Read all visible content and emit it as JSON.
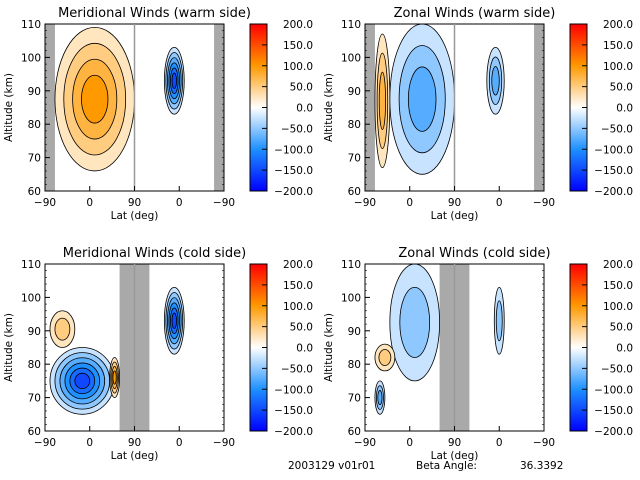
{
  "footer": {
    "date_version": "2003129 v01r01",
    "beta_label": "Beta Angle:",
    "beta_value": "36.3392"
  },
  "chart_data": [
    {
      "type": "heatmap",
      "title": "Meridional Winds (warm side)",
      "xlabel": "Lat (deg)",
      "ylabel": "Altitude (km)",
      "xticks": [
        "-90",
        "0",
        "90",
        "0",
        "-90"
      ],
      "yticks": [
        "60",
        "70",
        "80",
        "90",
        "100",
        "110"
      ],
      "ylim": [
        60,
        110
      ],
      "grid": false,
      "colorbar": {
        "range": [
          -200,
          200
        ],
        "ticks": [
          "200.0",
          "150.0",
          "100.0",
          "50.0",
          "0.0",
          "-50.0",
          "-100.0",
          "-150.0",
          "-200.0"
        ],
        "colormap": "blue-white-red"
      },
      "masked_lat_bands": [
        [
          -90,
          -70
        ],
        [
          -90,
          -70
        ]
      ],
      "features": [
        {
          "lat_range": [
            -70,
            90
          ],
          "alt_range": [
            66,
            109
          ],
          "value": 100,
          "note": "broad positive (orange) region, peaks ~150 near 90 at 100-105 km"
        },
        {
          "lat_range": [
            -10,
            30
          ],
          "alt_range": [
            83,
            103
          ],
          "value": -150,
          "note": "negative (blue) cell on right panel, centered ~93 km",
          "panel_side": "right"
        }
      ]
    },
    {
      "type": "heatmap",
      "title": "Zonal Winds (warm side)",
      "xlabel": "Lat (deg)",
      "ylabel": "Altitude (km)",
      "xticks": [
        "-90",
        "0",
        "90",
        "0",
        "-90"
      ],
      "yticks": [
        "60",
        "70",
        "80",
        "90",
        "100",
        "110"
      ],
      "ylim": [
        60,
        110
      ],
      "grid": false,
      "colorbar": {
        "range": [
          -200,
          200
        ],
        "ticks": [
          "200.0",
          "150.0",
          "100.0",
          "50.0",
          "0.0",
          "-50.0",
          "-100.0",
          "-150.0",
          "-200.0"
        ],
        "colormap": "blue-white-red"
      },
      "masked_lat_bands": [
        [
          -90,
          -70
        ],
        [
          -90,
          -70
        ]
      ],
      "features": [
        {
          "lat_range": [
            -70,
            -40
          ],
          "alt_range": [
            67,
            107
          ],
          "value": 75,
          "note": "positive band, peak near -50 at 75 km"
        },
        {
          "lat_range": [
            -40,
            90
          ],
          "alt_range": [
            65,
            110
          ],
          "value": -75,
          "note": "negative region, peak ~-125 near 90 at 77 km"
        },
        {
          "lat_range": [
            -10,
            25
          ],
          "alt_range": [
            83,
            103
          ],
          "value": -75,
          "note": "negative cell on right panel",
          "panel_side": "right"
        }
      ]
    },
    {
      "type": "heatmap",
      "title": "Meridional Winds (cold side)",
      "xlabel": "Lat (deg)",
      "ylabel": "Altitude (km)",
      "xticks": [
        "-90",
        "0",
        "90",
        "0",
        "-90"
      ],
      "yticks": [
        "60",
        "70",
        "80",
        "90",
        "100",
        "110"
      ],
      "ylim": [
        60,
        110
      ],
      "grid": false,
      "colorbar": {
        "range": [
          -200,
          200
        ],
        "ticks": [
          "200.0",
          "150.0",
          "100.0",
          "50.0",
          "0.0",
          "-50.0",
          "-100.0",
          "-150.0",
          "-200.0"
        ],
        "colormap": "blue-white-red"
      },
      "masked_lat_bands": [
        [
          60,
          90
        ],
        [
          90,
          120
        ]
      ],
      "features": [
        {
          "lat_range": [
            -80,
            50
          ],
          "alt_range": [
            65,
            85
          ],
          "value": -150,
          "note": "strong negative region, peaks near -70 and -10 at 75 km"
        },
        {
          "lat_range": [
            -80,
            -30
          ],
          "alt_range": [
            85,
            96
          ],
          "value": 50,
          "note": "positive cell ~90 km"
        },
        {
          "lat_range": [
            40,
            60
          ],
          "alt_range": [
            70,
            82
          ],
          "value": 100,
          "note": "positive near boundary"
        },
        {
          "lat_range": [
            -10,
            30
          ],
          "alt_range": [
            83,
            103
          ],
          "value": -150,
          "note": "negative cell on right panel",
          "panel_side": "right"
        }
      ]
    },
    {
      "type": "heatmap",
      "title": "Zonal Winds (cold side)",
      "xlabel": "Lat (deg)",
      "ylabel": "Altitude (km)",
      "xticks": [
        "-90",
        "0",
        "90",
        "0",
        "-90"
      ],
      "yticks": [
        "60",
        "70",
        "80",
        "90",
        "100",
        "110"
      ],
      "ylim": [
        60,
        110
      ],
      "grid": false,
      "colorbar": {
        "range": [
          -200,
          200
        ],
        "ticks": [
          "200.0",
          "150.0",
          "100.0",
          "50.0",
          "0.0",
          "-50.0",
          "-100.0",
          "-150.0",
          "-200.0"
        ],
        "colormap": "blue-white-red"
      },
      "masked_lat_bands": [
        [
          60,
          90
        ],
        [
          90,
          120
        ]
      ],
      "features": [
        {
          "lat_range": [
            -40,
            60
          ],
          "alt_range": [
            75,
            110
          ],
          "value": -50,
          "note": "negative region with peaks near 0 at 97 km and 45 at 79 km"
        },
        {
          "lat_range": [
            -70,
            -50
          ],
          "alt_range": [
            65,
            75
          ],
          "value": -75,
          "note": "negative cell ~70 km"
        },
        {
          "lat_range": [
            -70,
            -30
          ],
          "alt_range": [
            78,
            86
          ],
          "value": 40,
          "note": "positive cell ~82 km"
        },
        {
          "lat_range": [
            -10,
            10
          ],
          "alt_range": [
            83,
            103
          ],
          "value": -50,
          "note": "negative cell on right panel",
          "panel_side": "right"
        }
      ]
    }
  ]
}
